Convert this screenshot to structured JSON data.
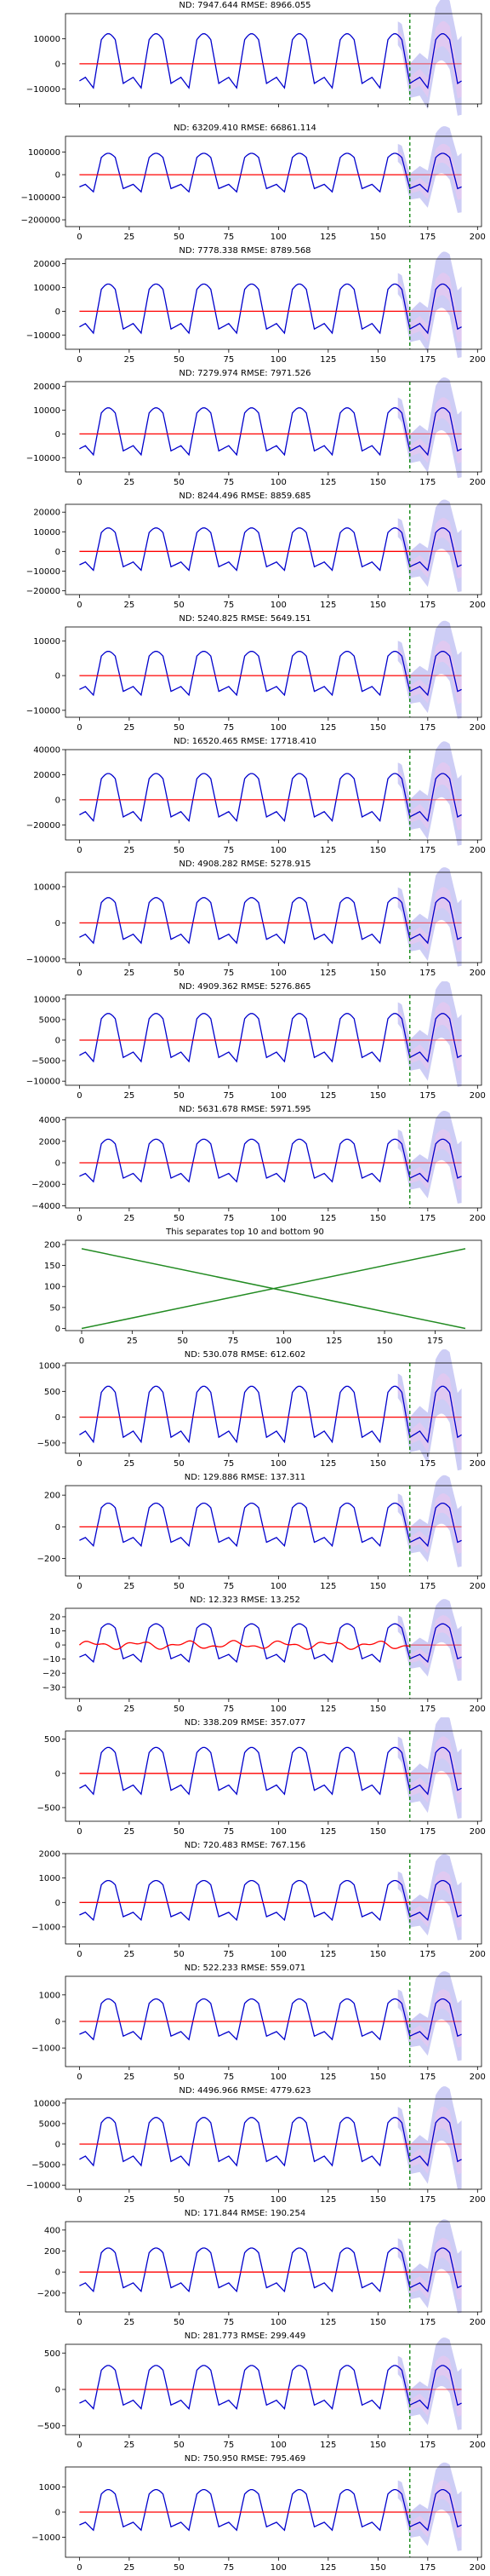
{
  "chart_data": [
    {
      "type": "line",
      "title": "ND:  7947.644 RMSE:  8966.055",
      "ylim": [
        -16000,
        20000
      ],
      "yticks": [
        -10000,
        0,
        10000
      ],
      "ytick_labels": [
        "−10000",
        "0",
        "10000"
      ],
      "amp": 12000,
      "band": 18000,
      "xticks": [
        0,
        25,
        50,
        75,
        100,
        125,
        150,
        175,
        200
      ],
      "xlim": [
        -7,
        202
      ],
      "vline": 166,
      "show_xticks": false,
      "red_wiggle": 0
    },
    {
      "type": "line",
      "title": "ND:  63209.410 RMSE:  66861.114",
      "ylim": [
        -230000,
        170000
      ],
      "yticks": [
        -200000,
        -100000,
        0,
        100000
      ],
      "ytick_labels": [
        "−200000",
        "−100000",
        "0",
        "100000"
      ],
      "amp": 95000,
      "band": 150000,
      "xticks": [
        0,
        25,
        50,
        75,
        100,
        125,
        150,
        175,
        200
      ],
      "xlim": [
        -7,
        202
      ],
      "vline": 166,
      "show_xticks": true,
      "red_wiggle": 0
    },
    {
      "type": "line",
      "title": "ND:  7778.338 RMSE:  8789.568",
      "ylim": [
        -16000,
        22000
      ],
      "yticks": [
        -10000,
        0,
        10000,
        20000
      ],
      "ytick_labels": [
        "−10000",
        "0",
        "10000",
        "20000"
      ],
      "amp": 11500,
      "band": 17000,
      "xticks": [
        0,
        25,
        50,
        75,
        100,
        125,
        150,
        175,
        200
      ],
      "xlim": [
        -7,
        202
      ],
      "vline": 166,
      "show_xticks": true,
      "red_wiggle": 0
    },
    {
      "type": "line",
      "title": "ND:  7279.974 RMSE:  7971.526",
      "ylim": [
        -16000,
        22000
      ],
      "yticks": [
        -10000,
        0,
        10000,
        20000
      ],
      "ytick_labels": [
        "−10000",
        "0",
        "10000",
        "20000"
      ],
      "amp": 11000,
      "band": 16000,
      "xticks": [
        0,
        25,
        50,
        75,
        100,
        125,
        150,
        175,
        200
      ],
      "xlim": [
        -7,
        202
      ],
      "vline": 166,
      "show_xticks": true,
      "red_wiggle": 0
    },
    {
      "type": "line",
      "title": "ND:  8244.496 RMSE:  8859.685",
      "ylim": [
        -22000,
        24000
      ],
      "yticks": [
        -20000,
        -10000,
        0,
        10000,
        20000
      ],
      "ytick_labels": [
        "−20000",
        "−10000",
        "0",
        "10000",
        "20000"
      ],
      "amp": 12000,
      "band": 18000,
      "xticks": [
        0,
        25,
        50,
        75,
        100,
        125,
        150,
        175,
        200
      ],
      "xlim": [
        -7,
        202
      ],
      "vline": 166,
      "show_xticks": true,
      "red_wiggle": 0
    },
    {
      "type": "line",
      "title": "ND:  5240.825 RMSE:  5649.151",
      "ylim": [
        -12000,
        14000
      ],
      "yticks": [
        -10000,
        0,
        10000
      ],
      "ytick_labels": [
        "−10000",
        "0",
        "10000"
      ],
      "amp": 7000,
      "band": 11000,
      "xticks": [
        0,
        25,
        50,
        75,
        100,
        125,
        150,
        175,
        200
      ],
      "xlim": [
        -7,
        202
      ],
      "vline": 166,
      "show_xticks": true,
      "red_wiggle": 0
    },
    {
      "type": "line",
      "title": "ND:  16520.465 RMSE:  17718.410",
      "ylim": [
        -32000,
        40000
      ],
      "yticks": [
        -20000,
        0,
        20000,
        40000
      ],
      "ytick_labels": [
        "−20000",
        "0",
        "20000",
        "40000"
      ],
      "amp": 21000,
      "band": 32000,
      "xticks": [
        0,
        25,
        50,
        75,
        100,
        125,
        150,
        175,
        200
      ],
      "xlim": [
        -7,
        202
      ],
      "vline": 166,
      "show_xticks": true,
      "red_wiggle": 0
    },
    {
      "type": "line",
      "title": "ND:  4908.282 RMSE:  5278.915",
      "ylim": [
        -11000,
        14000
      ],
      "yticks": [
        -10000,
        0,
        10000
      ],
      "ytick_labels": [
        "−10000",
        "0",
        "10000"
      ],
      "amp": 7000,
      "band": 10500,
      "xticks": [
        0,
        25,
        50,
        75,
        100,
        125,
        150,
        175,
        200
      ],
      "xlim": [
        -7,
        202
      ],
      "vline": 166,
      "show_xticks": true,
      "red_wiggle": 0
    },
    {
      "type": "line",
      "title": "ND:  4909.362 RMSE:  5276.865",
      "ylim": [
        -11000,
        11000
      ],
      "yticks": [
        -10000,
        -5000,
        0,
        5000,
        10000
      ],
      "ytick_labels": [
        "−10000",
        "−5000",
        "0",
        "5000",
        "10000"
      ],
      "amp": 6500,
      "band": 10000,
      "xticks": [
        0,
        25,
        50,
        75,
        100,
        125,
        150,
        175,
        200
      ],
      "xlim": [
        -7,
        202
      ],
      "vline": 166,
      "show_xticks": true,
      "red_wiggle": 0
    },
    {
      "type": "line",
      "title": "ND:  5631.678 RMSE:  5971.595",
      "ylim": [
        -4200,
        4200
      ],
      "yticks": [
        -4000,
        -2000,
        0,
        2000,
        4000
      ],
      "ytick_labels": [
        "−4000",
        "−2000",
        "0",
        "2000",
        "4000"
      ],
      "amp": 2200,
      "band": 3300,
      "xticks": [
        0,
        25,
        50,
        75,
        100,
        125,
        150,
        175,
        200
      ],
      "xlim": [
        -7,
        202
      ],
      "vline": 166,
      "show_xticks": true,
      "red_wiggle": 0
    },
    {
      "type": "separator",
      "title": "This separates top 10 and bottom 90",
      "ylim": [
        -5,
        210
      ],
      "yticks": [
        0,
        50,
        100,
        150,
        200
      ],
      "ytick_labels": [
        "0",
        "50",
        "100",
        "150",
        "200"
      ],
      "xticks": [
        0,
        25,
        50,
        75,
        100,
        125,
        150,
        175,
        200
      ],
      "xlim": [
        -8,
        198
      ],
      "show_xticks": true,
      "lines": [
        {
          "x": [
            0,
            190
          ],
          "y": [
            0,
            190
          ]
        },
        {
          "x": [
            0,
            190
          ],
          "y": [
            190,
            0
          ]
        }
      ]
    },
    {
      "type": "line",
      "title": "ND:  530.078 RMSE:  612.602",
      "ylim": [
        -700,
        1050
      ],
      "yticks": [
        -500,
        0,
        500,
        1000
      ],
      "ytick_labels": [
        "−500",
        "0",
        "500",
        "1000"
      ],
      "amp": 600,
      "band": 900,
      "xticks": [
        0,
        25,
        50,
        75,
        100,
        125,
        150,
        175,
        200
      ],
      "xlim": [
        -7,
        202
      ],
      "vline": 166,
      "show_xticks": true,
      "red_wiggle": 0
    },
    {
      "type": "line",
      "title": "ND:  129.886 RMSE:  137.311",
      "ylim": [
        -310,
        260
      ],
      "yticks": [
        -200,
        0,
        200
      ],
      "ytick_labels": [
        "−200",
        "0",
        "200"
      ],
      "amp": 150,
      "band": 220,
      "xticks": [
        0,
        25,
        50,
        75,
        100,
        125,
        150,
        175,
        200
      ],
      "xlim": [
        -7,
        202
      ],
      "vline": 166,
      "show_xticks": true,
      "red_wiggle": 0
    },
    {
      "type": "line",
      "title": "ND:  12.323 RMSE:  13.252",
      "ylim": [
        -38,
        26
      ],
      "yticks": [
        -30,
        -20,
        -10,
        0,
        10,
        20
      ],
      "ytick_labels": [
        "−30",
        "−20",
        "−10",
        "0",
        "10",
        "20"
      ],
      "amp": 15,
      "band": 22,
      "xticks": [
        0,
        25,
        50,
        75,
        100,
        125,
        150,
        175,
        200
      ],
      "xlim": [
        -7,
        202
      ],
      "vline": 166,
      "show_xticks": true,
      "red_wiggle": 2
    },
    {
      "type": "line",
      "title": "ND:  338.209 RMSE:  357.077",
      "ylim": [
        -700,
        620
      ],
      "yticks": [
        -500,
        0,
        500
      ],
      "ytick_labels": [
        "−500",
        "0",
        "500"
      ],
      "amp": 380,
      "band": 580,
      "xticks": [
        0,
        25,
        50,
        75,
        100,
        125,
        150,
        175,
        200
      ],
      "xlim": [
        -7,
        202
      ],
      "vline": 166,
      "show_xticks": true,
      "red_wiggle": 0
    },
    {
      "type": "line",
      "title": "ND:  720.483 RMSE:  767.156",
      "ylim": [
        -1700,
        2000
      ],
      "yticks": [
        -1000,
        0,
        1000,
        2000
      ],
      "ytick_labels": [
        "−1000",
        "0",
        "1000",
        "2000"
      ],
      "amp": 900,
      "band": 1350,
      "xticks": [
        0,
        25,
        50,
        75,
        100,
        125,
        150,
        175,
        200
      ],
      "xlim": [
        -7,
        202
      ],
      "vline": 166,
      "show_xticks": true,
      "red_wiggle": 0
    },
    {
      "type": "line",
      "title": "ND:  522.233 RMSE:  559.071",
      "ylim": [
        -1700,
        1700
      ],
      "yticks": [
        -1000,
        0,
        1000
      ],
      "ytick_labels": [
        "−1000",
        "0",
        "1000"
      ],
      "amp": 850,
      "band": 1300,
      "xticks": [
        0,
        25,
        50,
        75,
        100,
        125,
        150,
        175,
        200
      ],
      "xlim": [
        -7,
        202
      ],
      "vline": 166,
      "show_xticks": true,
      "red_wiggle": 0
    },
    {
      "type": "line",
      "title": "ND:  4496.966 RMSE:  4779.623",
      "ylim": [
        -11000,
        11000
      ],
      "yticks": [
        -10000,
        -5000,
        0,
        5000,
        10000
      ],
      "ytick_labels": [
        "−10000",
        "−5000",
        "0",
        "5000",
        "10000"
      ],
      "amp": 6500,
      "band": 9500,
      "xticks": [
        0,
        25,
        50,
        75,
        100,
        125,
        150,
        175,
        200
      ],
      "xlim": [
        -7,
        202
      ],
      "vline": 166,
      "show_xticks": true,
      "red_wiggle": 0
    },
    {
      "type": "line",
      "title": "ND:  171.844 RMSE:  190.254",
      "ylim": [
        -380,
        480
      ],
      "yticks": [
        -200,
        0,
        200,
        400
      ],
      "ytick_labels": [
        "−200",
        "0",
        "200",
        "400"
      ],
      "amp": 230,
      "band": 340,
      "xticks": [
        0,
        25,
        50,
        75,
        100,
        125,
        150,
        175,
        200
      ],
      "xlim": [
        -7,
        202
      ],
      "vline": 166,
      "show_xticks": true,
      "red_wiggle": 0
    },
    {
      "type": "line",
      "title": "ND:  281.773 RMSE:  299.449",
      "ylim": [
        -620,
        620
      ],
      "yticks": [
        -500,
        0,
        500
      ],
      "ytick_labels": [
        "−500",
        "0",
        "500"
      ],
      "amp": 330,
      "band": 480,
      "xticks": [
        0,
        25,
        50,
        75,
        100,
        125,
        150,
        175,
        200
      ],
      "xlim": [
        -7,
        202
      ],
      "vline": 166,
      "show_xticks": true,
      "red_wiggle": 0
    },
    {
      "type": "line",
      "title": "ND:  750.950 RMSE:  795.469",
      "ylim": [
        -1800,
        1800
      ],
      "yticks": [
        -1000,
        0,
        1000
      ],
      "ytick_labels": [
        "−1000",
        "0",
        "1000"
      ],
      "amp": 900,
      "band": 1350,
      "xticks": [
        0,
        25,
        50,
        75,
        100,
        125,
        150,
        175,
        200
      ],
      "xlim": [
        -7,
        202
      ],
      "vline": 166,
      "show_xticks": true,
      "red_wiggle": 0
    }
  ],
  "colors": {
    "prediction": "#0000cc",
    "actual": "#ff0000",
    "band": "#c8c8f4",
    "band_inner": "#e8c8f0",
    "vline": "#008000",
    "separator": "#228b22",
    "axis": "#000000"
  }
}
